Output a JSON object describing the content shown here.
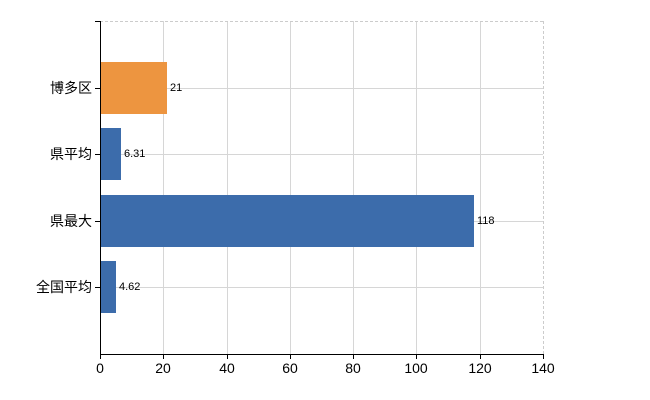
{
  "chart_data": {
    "type": "bar",
    "orientation": "horizontal",
    "categories": [
      "博多区",
      "県平均",
      "県最大",
      "全国平均"
    ],
    "values": [
      21,
      6.31,
      118,
      4.62
    ],
    "value_labels": [
      "21",
      "6.31",
      "118",
      "4.62"
    ],
    "bar_colors": [
      "#ED9540",
      "#3C6CAB",
      "#3C6CAB",
      "#3C6CAB"
    ],
    "xlim": [
      0,
      140
    ],
    "x_ticks": [
      0,
      20,
      40,
      60,
      80,
      100,
      120,
      140
    ],
    "x_tick_labels": [
      "0",
      "20",
      "40",
      "60",
      "80",
      "100",
      "120",
      "140"
    ],
    "grid": true,
    "legend": "none",
    "colors": {
      "accent_orange": "#ED9540",
      "accent_blue": "#3C6CAB",
      "gridline": "#d6d6d6",
      "axis": "#000000",
      "background": "#ffffff"
    }
  }
}
